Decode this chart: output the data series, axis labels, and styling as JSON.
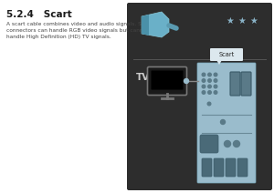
{
  "title": "5.2.4   Scart",
  "body_text": "A scart cable combines video and audio signals. Scart\nconnectors can handle RGB video signals but cannot\nhandle High Definition (HD) TV signals.",
  "bg_color": "#ffffff",
  "panel_bg": "#2d2d2d",
  "star_color": "#8ab4c8",
  "scart_connector_bg": "#9abccc",
  "tv_text_color": "#cccccc",
  "divider_color": "#555555",
  "pin_color": "#5a7a88",
  "slot_color": "#708090",
  "label_bg": "#dce8ee"
}
